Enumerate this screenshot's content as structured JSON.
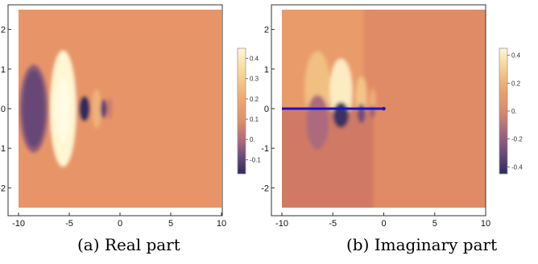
{
  "chart_data": [
    {
      "type": "heatmap",
      "id": "a",
      "x_range": [
        -10,
        10
      ],
      "y_range": [
        -2.5,
        2.5
      ],
      "xticks": [
        -10,
        -5,
        0,
        5,
        10
      ],
      "yticks": [
        -2,
        -1,
        0,
        1,
        2
      ],
      "colorbar": {
        "min": -0.17,
        "max": 0.45,
        "ticks": [
          "0.4",
          "0.3",
          "0.2",
          "0.1",
          "0.",
          "-0.1"
        ],
        "tick_values": [
          0.4,
          0.3,
          0.2,
          0.1,
          0.0,
          -0.1
        ]
      },
      "features": [
        {
          "x": -8.5,
          "value": -0.08
        },
        {
          "x": -5.6,
          "value": 0.45
        },
        {
          "x": -3.5,
          "value": -0.17
        },
        {
          "x": -2.3,
          "value": 0.3
        },
        {
          "x": -1.6,
          "value": -0.1
        },
        {
          "x": -1.0,
          "value": 0.12
        }
      ],
      "caption": "(a) Real part"
    },
    {
      "type": "heatmap",
      "id": "b",
      "x_range": [
        -10,
        10
      ],
      "y_range": [
        -2.5,
        2.5
      ],
      "xticks": [
        -10,
        -5,
        0,
        5,
        10
      ],
      "yticks": [
        -2,
        -1,
        0,
        1,
        2
      ],
      "colorbar": {
        "min": -0.45,
        "max": 0.45,
        "ticks": [
          "0.4",
          "0.2",
          "0.",
          "-0.2",
          "-0.4"
        ],
        "tick_values": [
          0.4,
          0.2,
          0.0,
          -0.2,
          -0.4
        ]
      },
      "branch_cut": {
        "x": [
          -10,
          0
        ],
        "y": 0,
        "color": "#1a14c8"
      },
      "features": [
        {
          "x": -6.5,
          "value": 0.3
        },
        {
          "x": -4.2,
          "value": 0.42
        },
        {
          "x": -2.2,
          "value": 0.3
        },
        {
          "x": -1.1,
          "value": 0.2
        }
      ],
      "caption": "(b) Imaginary part"
    }
  ],
  "colormap": [
    "#2e2b5e",
    "#6e4a7a",
    "#a2667e",
    "#d47f70",
    "#e69a6a",
    "#f4c586",
    "#fff6d2"
  ]
}
